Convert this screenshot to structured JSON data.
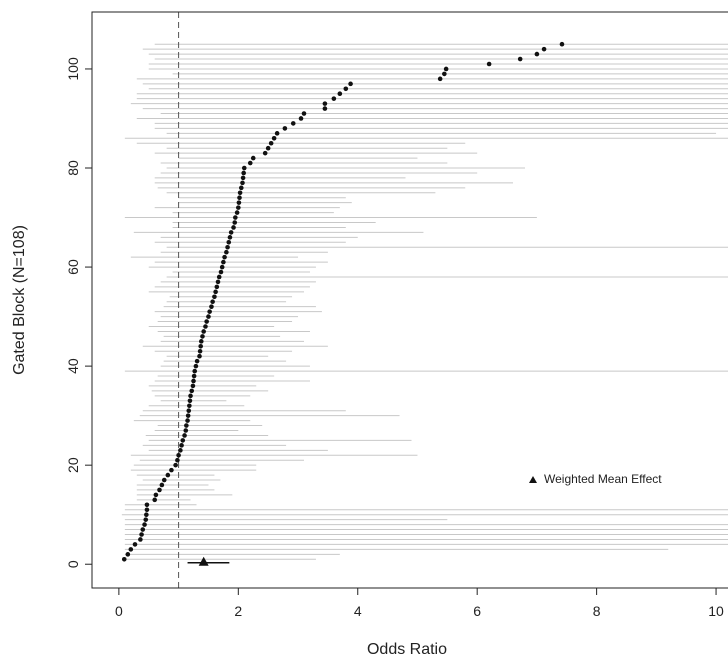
{
  "chart_data": {
    "type": "scatter",
    "title": "",
    "xlabel": "Odds Ratio",
    "ylabel": "Gated Block (N=108)",
    "xlim": [
      -0.45,
      10.2
    ],
    "ylim": [
      -4.8,
      111.5
    ],
    "x_ticks": [
      0,
      2,
      4,
      6,
      8,
      10
    ],
    "y_ticks": [
      0,
      20,
      40,
      60,
      80,
      100
    ],
    "grid": false,
    "reference_line": {
      "x": 1,
      "style": "dashed"
    },
    "legend": {
      "label": "Weighted Mean Effect",
      "marker": "triangle",
      "position": "right"
    },
    "colors": {
      "point": "#111111",
      "ci_line": "#c8c8c8",
      "axis": "#222222",
      "reference": "#555555"
    },
    "weighted_mean": {
      "x": 1.42,
      "y": 0.5,
      "ci": [
        1.15,
        1.85
      ]
    },
    "series": [
      {
        "y": [
          1,
          2,
          3,
          4,
          5,
          6,
          7,
          8,
          9,
          10,
          11,
          12,
          13,
          14,
          15,
          16,
          17,
          18,
          19,
          20,
          21,
          22,
          23,
          24,
          25,
          26,
          27,
          28,
          29,
          30,
          31,
          32,
          33,
          34,
          35,
          36,
          37,
          38,
          39,
          40,
          41,
          42,
          43,
          44,
          45,
          46,
          47,
          48,
          49,
          50,
          51,
          52,
          53,
          54,
          55,
          56,
          57,
          58,
          59,
          60,
          61,
          62,
          63,
          64,
          65,
          66,
          67,
          68,
          69,
          70,
          71,
          72,
          73,
          74,
          75,
          76,
          77,
          78,
          79,
          80,
          81,
          82,
          83,
          84,
          85,
          86,
          87,
          88,
          89,
          90,
          91,
          92,
          93,
          94,
          95,
          96,
          97,
          98,
          99,
          100,
          101,
          102,
          103,
          104,
          105
        ],
        "x": [
          0.09,
          0.15,
          0.2,
          0.27,
          0.36,
          0.38,
          0.4,
          0.43,
          0.45,
          0.46,
          0.47,
          0.47,
          0.6,
          0.62,
          0.68,
          0.72,
          0.76,
          0.82,
          0.88,
          0.95,
          0.98,
          1.0,
          1.03,
          1.05,
          1.07,
          1.1,
          1.12,
          1.13,
          1.15,
          1.16,
          1.17,
          1.18,
          1.19,
          1.2,
          1.22,
          1.24,
          1.25,
          1.26,
          1.27,
          1.29,
          1.31,
          1.35,
          1.36,
          1.37,
          1.38,
          1.4,
          1.42,
          1.45,
          1.47,
          1.5,
          1.52,
          1.55,
          1.57,
          1.6,
          1.62,
          1.64,
          1.66,
          1.68,
          1.71,
          1.73,
          1.75,
          1.77,
          1.8,
          1.82,
          1.84,
          1.86,
          1.88,
          1.92,
          1.94,
          1.95,
          1.98,
          2.0,
          2.01,
          2.02,
          2.03,
          2.05,
          2.07,
          2.08,
          2.09,
          2.1,
          2.2,
          2.25,
          2.45,
          2.5,
          2.55,
          2.6,
          2.65,
          2.78,
          2.92,
          3.05,
          3.1,
          3.45,
          3.45,
          3.6,
          3.7,
          3.8,
          3.88,
          5.38,
          5.45,
          5.48,
          6.2,
          6.72,
          7.0,
          7.12,
          7.42
        ],
        "ci_low": [
          0.1,
          0.1,
          0.1,
          0.1,
          0.1,
          0.1,
          0.1,
          0.1,
          0.1,
          0.05,
          0.1,
          0.1,
          0.3,
          0.3,
          0.3,
          0.3,
          0.4,
          0.3,
          0.2,
          0.25,
          0.35,
          0.2,
          0.5,
          0.4,
          0.5,
          0.45,
          0.6,
          0.65,
          0.25,
          0.35,
          0.4,
          0.5,
          0.7,
          0.6,
          0.55,
          0.5,
          0.6,
          0.65,
          0.1,
          0.7,
          0.75,
          0.8,
          0.6,
          0.4,
          0.7,
          0.75,
          0.65,
          0.5,
          0.65,
          0.7,
          0.6,
          0.75,
          0.8,
          0.85,
          0.5,
          0.6,
          0.7,
          0.8,
          0.9,
          0.5,
          0.6,
          0.2,
          0.7,
          0.8,
          0.6,
          0.7,
          0.25,
          0.9,
          0.9,
          0.1,
          0.9,
          0.6,
          1.0,
          1.0,
          0.8,
          0.65,
          0.6,
          0.6,
          0.7,
          0.8,
          0.7,
          1.0,
          0.6,
          0.8,
          0.3,
          0.1,
          0.8,
          0.6,
          0.6,
          0.3,
          0.7,
          0.4,
          0.2,
          0.3,
          0.3,
          0.5,
          0.4,
          0.3,
          0.9,
          0.5,
          0.5,
          0.6,
          0.5,
          0.4,
          0.6
        ],
        "ci_high": [
          3.3,
          3.7,
          9.2,
          12,
          12,
          12,
          12,
          12,
          5.5,
          12,
          12,
          1.3,
          1.2,
          1.9,
          1.6,
          1.5,
          1.7,
          1.6,
          2.3,
          2.3,
          3.1,
          5.0,
          3.5,
          2.8,
          4.9,
          2.5,
          2.0,
          2.4,
          2.2,
          4.7,
          3.8,
          2.1,
          1.8,
          2.2,
          2.5,
          2.3,
          3.2,
          2.6,
          12,
          3.2,
          2.8,
          2.5,
          2.9,
          3.5,
          3.1,
          2.7,
          3.2,
          2.6,
          2.9,
          3.0,
          3.4,
          3.3,
          2.8,
          2.9,
          3.1,
          3.2,
          3.3,
          12,
          3.2,
          3.3,
          3.5,
          3.0,
          3.5,
          12,
          3.8,
          4.0,
          5.1,
          3.8,
          4.3,
          7.0,
          3.6,
          3.7,
          3.9,
          3.8,
          5.3,
          5.8,
          6.6,
          4.8,
          6.0,
          6.8,
          5.5,
          5.0,
          6.0,
          5.5,
          5.8,
          12,
          10,
          12,
          12,
          12,
          12,
          12,
          12,
          12,
          12,
          12,
          12,
          12,
          12,
          12,
          12,
          12,
          12,
          12,
          12
        ]
      }
    ]
  }
}
